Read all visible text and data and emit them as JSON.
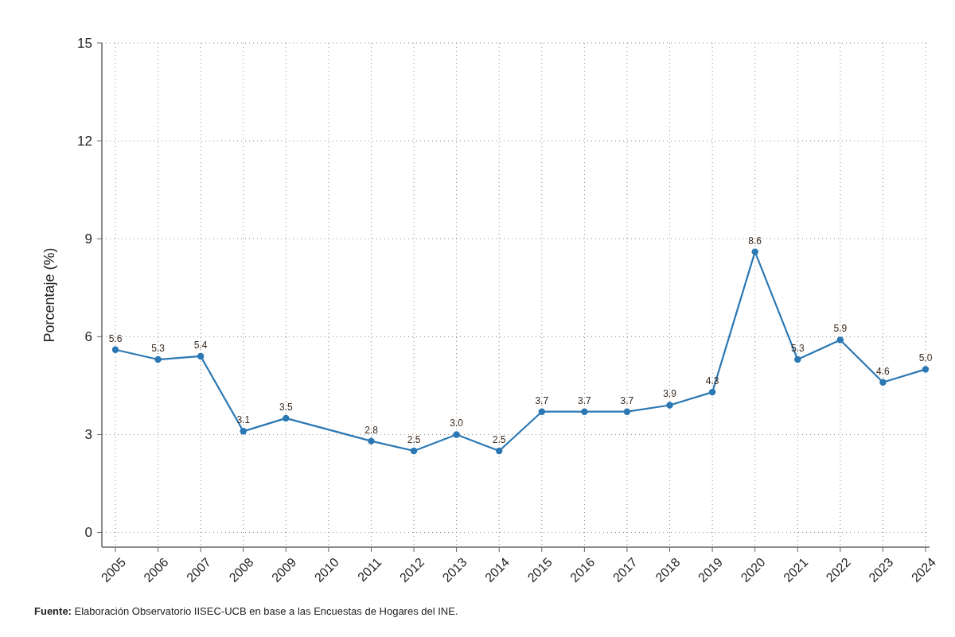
{
  "chart_data": {
    "type": "line",
    "ylabel": "Porcentaje (%)",
    "categories": [
      "2005",
      "2006",
      "2007",
      "2008",
      "2009",
      "2010",
      "2011",
      "2012",
      "2013",
      "2014",
      "2015",
      "2016",
      "2017",
      "2018",
      "2019",
      "2020",
      "2021",
      "2022",
      "2023",
      "2024"
    ],
    "series": [
      {
        "color": "#2b78b4",
        "values": [
          5.6,
          5.3,
          5.4,
          3.1,
          3.5,
          null,
          2.8,
          2.5,
          3.0,
          2.5,
          3.7,
          3.7,
          3.7,
          3.9,
          4.3,
          8.6,
          5.3,
          5.9,
          4.6,
          5.0
        ],
        "value_labels": [
          "5.6",
          "5.3",
          "5.4",
          "3.1",
          "3.5",
          null,
          "2.8",
          "2.5",
          "3.0",
          "2.5",
          "3.7",
          "3.7",
          "3.7",
          "3.9",
          "4.3",
          "8.6",
          "5.3",
          "5.9",
          "4.6",
          "5.0"
        ]
      }
    ],
    "ylim": [
      -0.45,
      15
    ],
    "yticks": [
      0,
      3,
      6,
      9,
      12,
      15
    ],
    "grid": true,
    "marker": "circle",
    "line_style": "solid",
    "annotations": [
      "Fuente: Elaboración Observatorio IISEC-UCB en base a las Encuestas de Hogares del INE."
    ]
  }
}
